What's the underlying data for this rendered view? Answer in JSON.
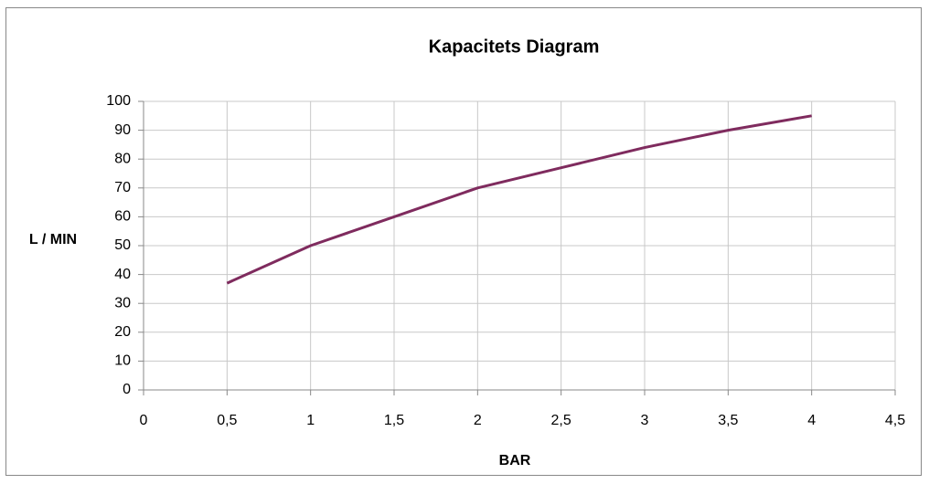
{
  "chart_data": {
    "type": "line",
    "title": "Kapacitets Diagram",
    "x_label": "BAR",
    "y_label": "L / MIN",
    "x": [
      0.5,
      1,
      1.5,
      2,
      2.5,
      3,
      3.5,
      4
    ],
    "series": [
      {
        "name": "L / MIN",
        "color": "#7f2b5e",
        "values": [
          37,
          50,
          60,
          70,
          77,
          84,
          90,
          95
        ]
      }
    ],
    "xlim": [
      0,
      4.5
    ],
    "xticks": [
      0,
      {
        "value": 0.5,
        "label": "0,5"
      },
      1,
      {
        "value": 1.5,
        "label": "1,5"
      },
      2,
      {
        "value": 2.5,
        "label": "2,5"
      },
      3,
      {
        "value": 3.5,
        "label": "3,5"
      },
      4,
      {
        "value": 4.5,
        "label": "4,5"
      }
    ],
    "ylim": [
      0,
      100
    ],
    "yticks": [
      0,
      10,
      20,
      30,
      40,
      50,
      60,
      70,
      80,
      90,
      100
    ],
    "grid": true
  }
}
